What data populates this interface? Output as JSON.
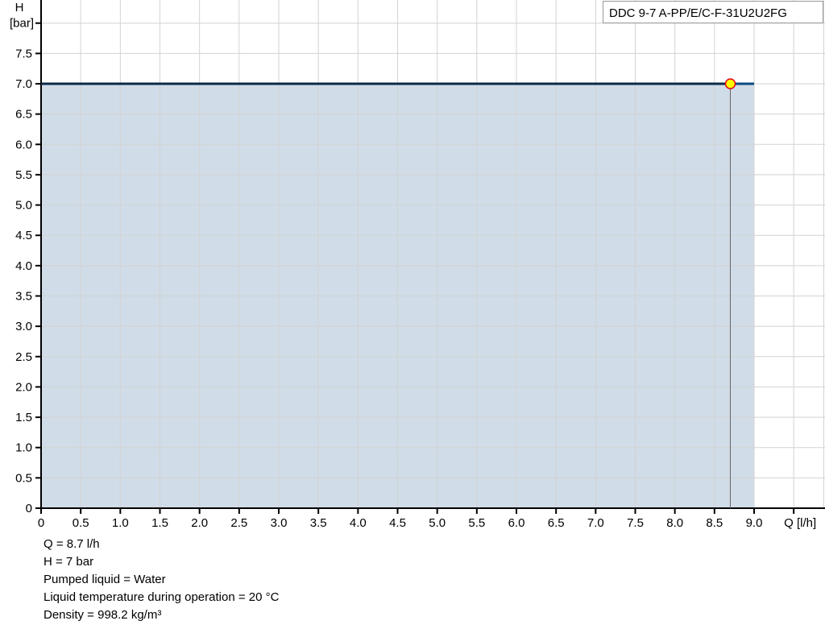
{
  "chart_data": {
    "type": "area",
    "title": "DDC 9-7 A-PP/E/C-F-31U2U2FG",
    "xlabel": "Q [l/h]",
    "ylabel_top": "H",
    "ylabel": "[bar]",
    "xlim": [
      0,
      9.5
    ],
    "ylim": [
      0,
      8.0
    ],
    "xticks": [
      "0",
      "0.5",
      "1.0",
      "1.5",
      "2.0",
      "2.5",
      "3.0",
      "3.5",
      "4.0",
      "4.5",
      "5.0",
      "5.5",
      "6.0",
      "6.5",
      "7.0",
      "7.5",
      "8.0",
      "8.5",
      "9.0"
    ],
    "yticks": [
      "0",
      "0.5",
      "1.0",
      "1.5",
      "2.0",
      "2.5",
      "3.0",
      "3.5",
      "4.0",
      "4.5",
      "5.0",
      "5.5",
      "6.0",
      "6.5",
      "7.0",
      "7.5"
    ],
    "grid": true,
    "series": [
      {
        "x": [
          0,
          9.0
        ],
        "y": [
          7.0,
          7.0
        ]
      }
    ],
    "operating_point": {
      "x": 8.7,
      "y": 7.0
    },
    "colors": {
      "curve": "#0b4a80",
      "fill": "#d0dce7",
      "grid": "#d3d3d3",
      "point_fill": "#ffff00",
      "point_stroke": "#e0001a"
    }
  },
  "info": [
    "Q = 8.7 l/h",
    "H = 7 bar",
    "Pumped liquid = Water",
    "Liquid temperature during operation = 20 °C",
    "Density = 998.2 kg/m³"
  ]
}
